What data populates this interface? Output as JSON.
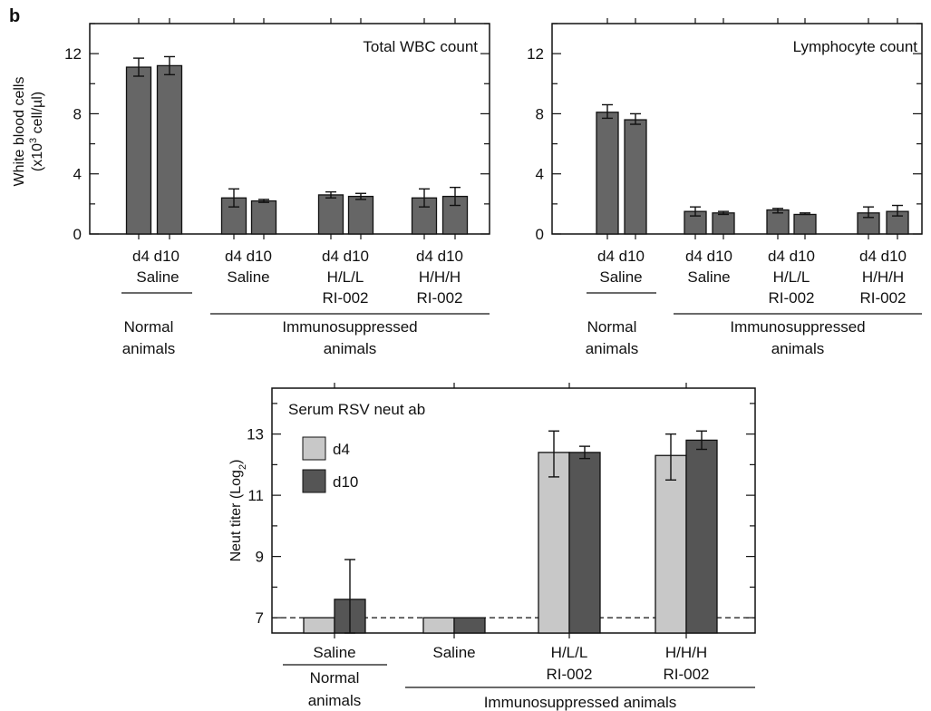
{
  "panel_label": "b",
  "shared": {
    "ylabel_line1": "White blood cells",
    "ylabel_line2_prefix": "(x10",
    "ylabel_line2_sup": "3",
    "ylabel_line2_suffix": " cell/µl)",
    "tick_day": "d4 d10",
    "tick_saline": "Saline",
    "tick_hll": "H/L/L",
    "tick_hhh": "H/H/H",
    "tick_ri": "RI-002",
    "group_normal_1": "Normal",
    "group_normal_2": "animals",
    "group_immuno_1": "Immunosuppressed",
    "group_immuno_2": "animals",
    "immuno_single": "Immunosuppressed animals"
  },
  "colors": {
    "bar_dark_gray": "#666666",
    "bar_light_gray": "#c8c8c8",
    "bar_darker": "#555555"
  },
  "chart_data": [
    {
      "type": "bar",
      "title": "Total WBC count",
      "ylabel": "White blood cells (x10^3 cell/µl)",
      "ylim": [
        0,
        14
      ],
      "yticks": [
        0,
        4,
        8,
        12
      ],
      "categories": [
        "d4 Saline (Normal)",
        "d10 Saline (Normal)",
        "d4 Saline",
        "d10 Saline",
        "d4 H/L/L RI-002",
        "d10 H/L/L RI-002",
        "d4 H/H/H RI-002",
        "d10 H/H/H RI-002"
      ],
      "values": [
        11.1,
        11.2,
        2.4,
        2.2,
        2.6,
        2.5,
        2.4,
        2.5
      ],
      "err_low": [
        10.5,
        10.6,
        1.8,
        2.1,
        2.4,
        2.3,
        1.8,
        1.9
      ],
      "err_high": [
        11.7,
        11.8,
        3.0,
        2.3,
        2.8,
        2.7,
        3.0,
        3.1
      ]
    },
    {
      "type": "bar",
      "title": "Lymphocyte count",
      "ylim": [
        0,
        14
      ],
      "yticks": [
        0,
        4,
        8,
        12
      ],
      "categories": [
        "d4 Saline (Normal)",
        "d10 Saline (Normal)",
        "d4 Saline",
        "d10 Saline",
        "d4 H/L/L RI-002",
        "d10 H/L/L RI-002",
        "d4 H/H/H RI-002",
        "d10 H/H/H RI-002"
      ],
      "values": [
        8.1,
        7.6,
        1.5,
        1.4,
        1.6,
        1.3,
        1.4,
        1.5
      ],
      "err_low": [
        7.7,
        7.3,
        1.2,
        1.3,
        1.4,
        1.3,
        1.1,
        1.2
      ],
      "err_high": [
        8.6,
        8.0,
        1.8,
        1.5,
        1.7,
        1.4,
        1.8,
        1.9
      ]
    },
    {
      "type": "bar",
      "title": "Serum RSV neut ab",
      "ylabel": "Neut titer (Log2)",
      "ylabel_prefix": "Neut titer (Log",
      "ylabel_sub": "2",
      "ylabel_suffix": ")",
      "ylim": [
        6.5,
        14.5
      ],
      "yticks": [
        7,
        9,
        11,
        13
      ],
      "dashed_line": 7,
      "categories": [
        "Saline (Normal)",
        "Saline",
        "H/L/L RI-002",
        "H/H/H RI-002"
      ],
      "series": [
        {
          "name": "d4",
          "values": [
            7.0,
            7.0,
            12.4,
            12.3
          ],
          "err_low": [
            7.0,
            7.0,
            11.6,
            11.5
          ],
          "err_high": [
            7.0,
            7.0,
            13.1,
            13.0
          ]
        },
        {
          "name": "d10",
          "values": [
            7.6,
            7.0,
            12.4,
            12.8
          ],
          "err_low": [
            6.5,
            7.0,
            12.2,
            12.5
          ],
          "err_high": [
            8.9,
            7.0,
            12.6,
            13.1
          ]
        }
      ]
    }
  ]
}
